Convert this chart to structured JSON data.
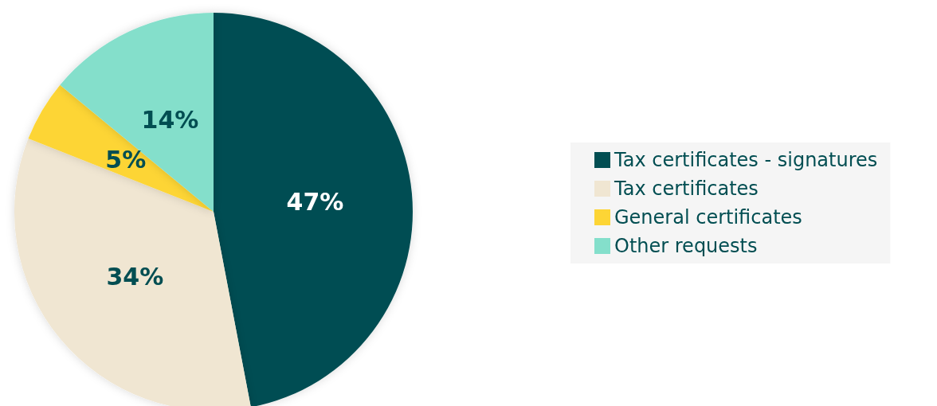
{
  "chart_data": {
    "type": "pie",
    "categories": [
      "Tax certificates - signatures",
      "Tax certificates",
      "General certificates",
      "Other requests"
    ],
    "values": [
      47,
      34,
      5,
      14
    ],
    "colors": [
      "#024e52",
      "#f0e6d2",
      "#fdd535",
      "#84dfcb"
    ],
    "value_labels": [
      "47%",
      "34%",
      "5%",
      "14%"
    ],
    "legend": "right"
  }
}
